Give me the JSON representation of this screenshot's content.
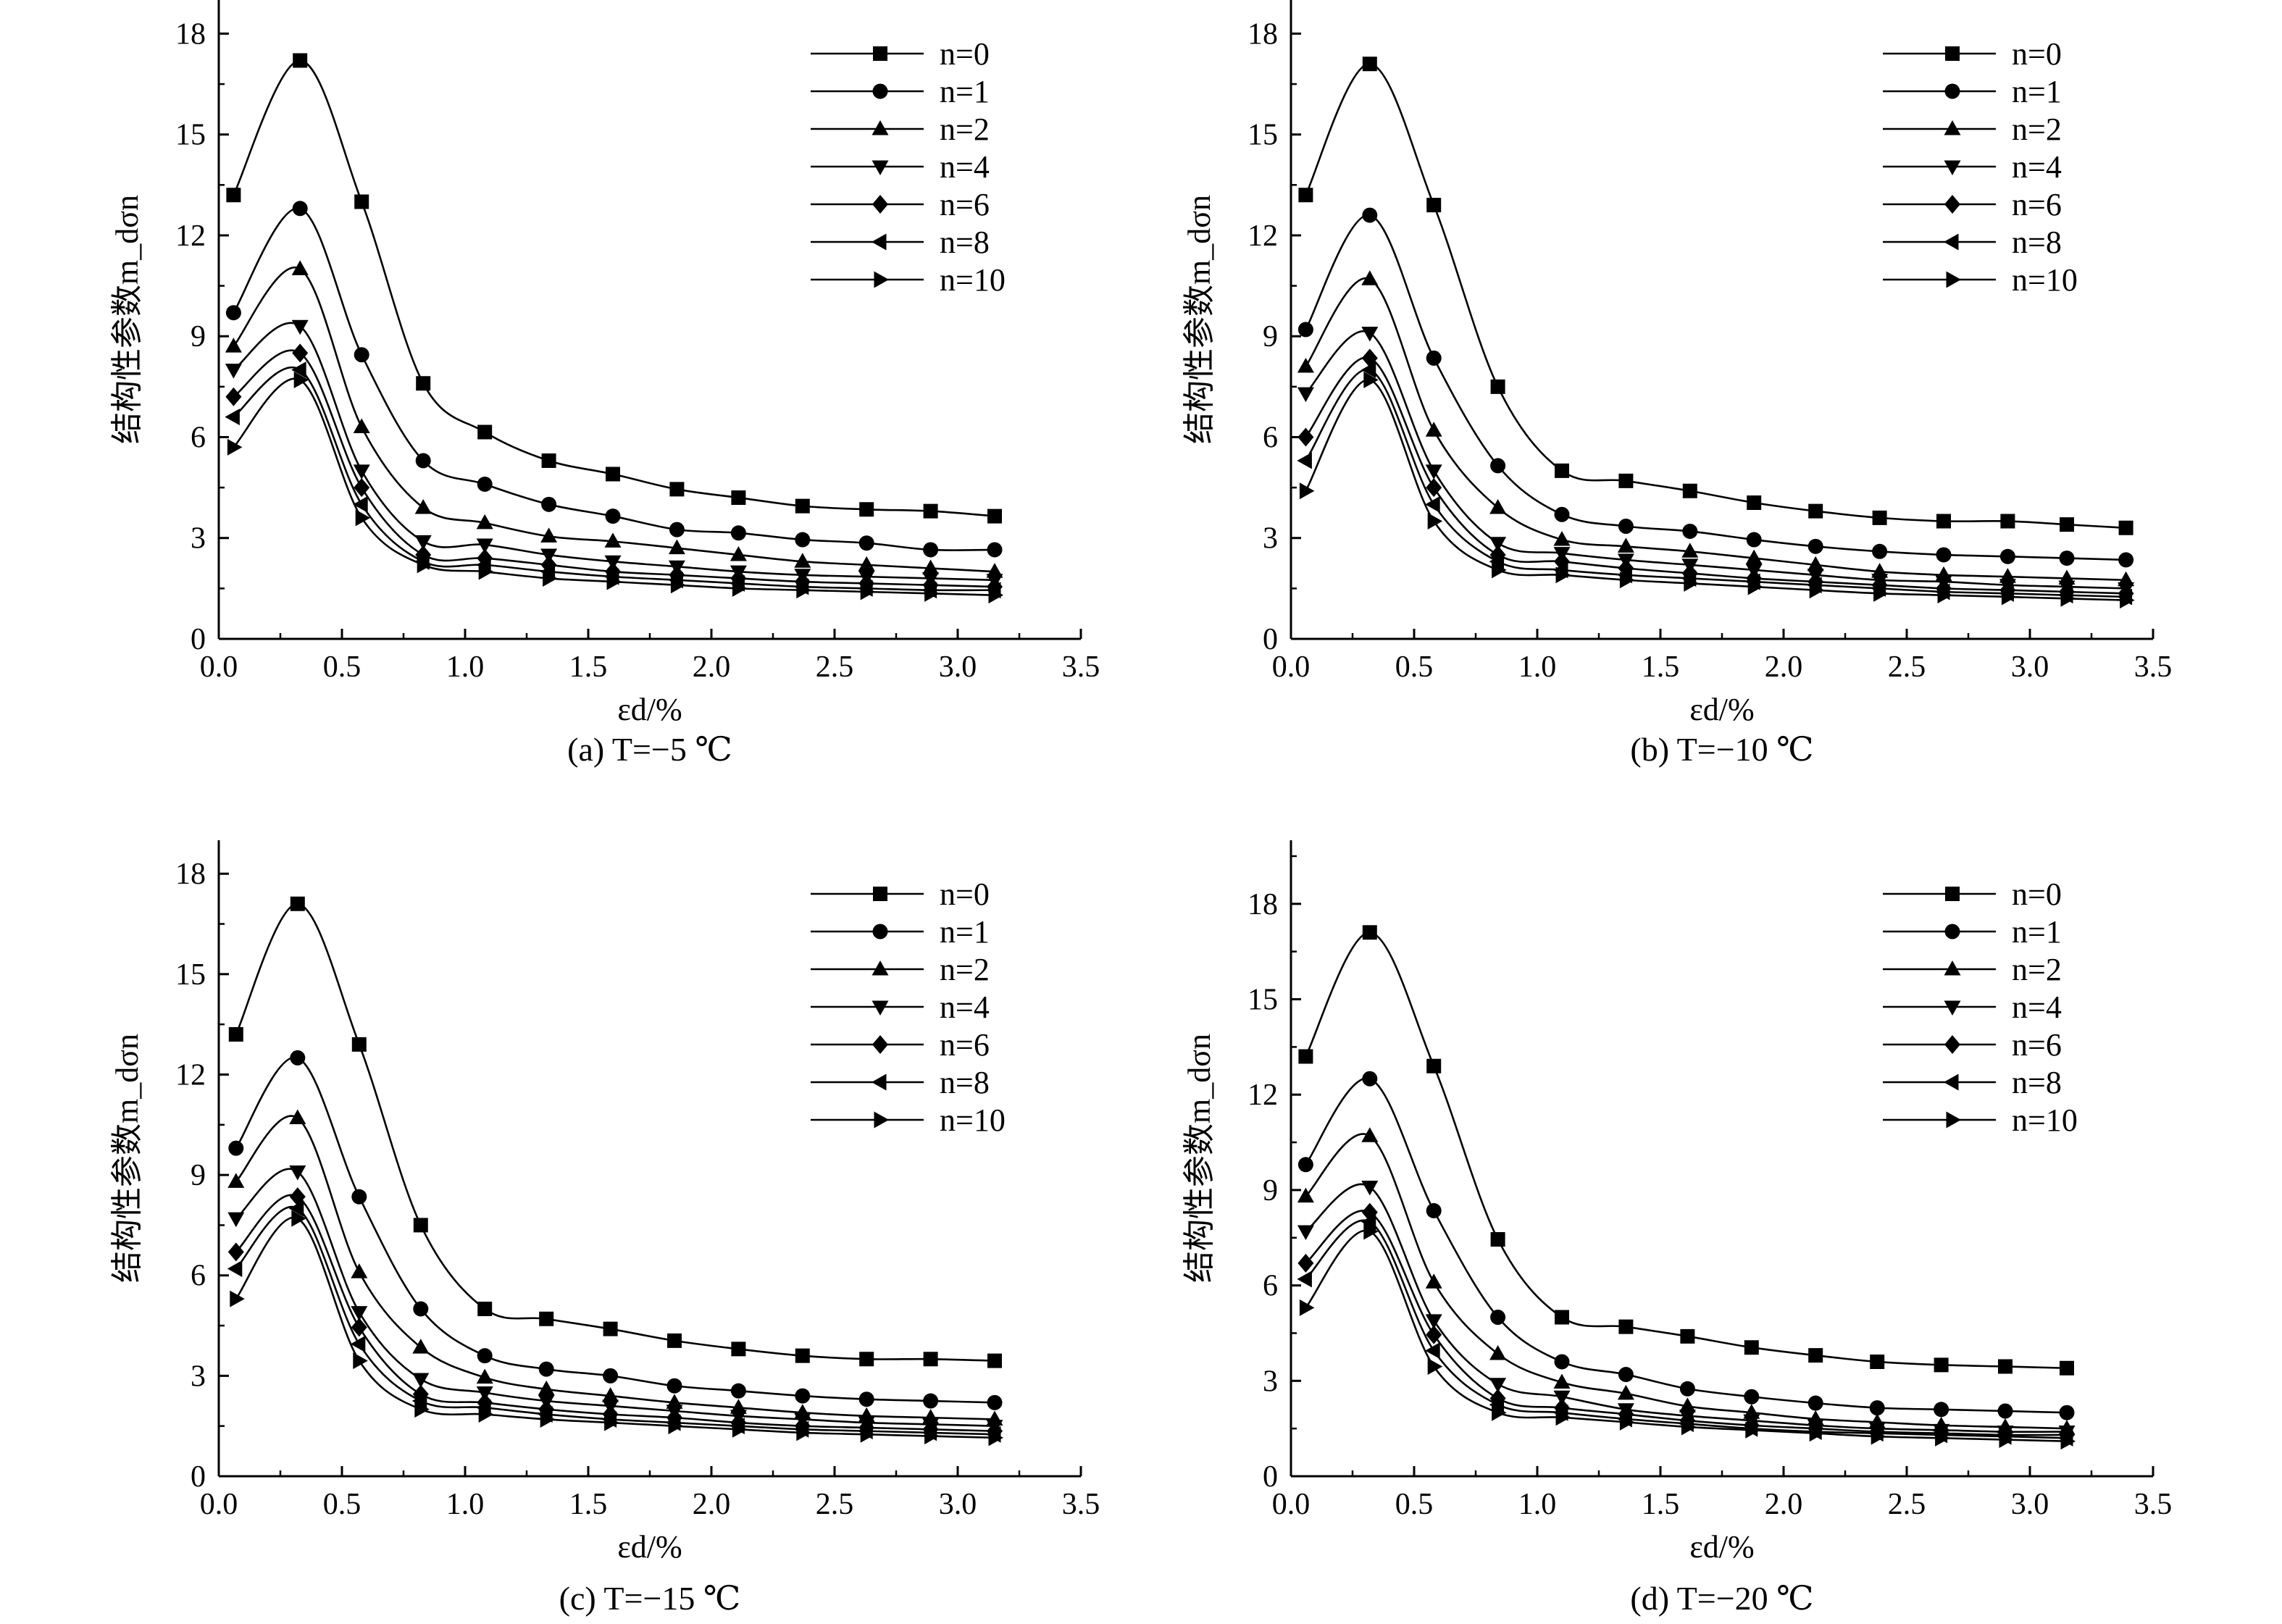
{
  "chart_data": [
    {
      "type": "line",
      "caption": "(a) T=−5 ℃",
      "xlabel": "εd/%",
      "ylabel": "结构性参数m_dσn",
      "xlim": [
        0,
        3.5
      ],
      "ylim": [
        0,
        19
      ],
      "xticks": [
        "0.0",
        "0.5",
        "1.0",
        "1.5",
        "2.0",
        "2.5",
        "3.0",
        "3.5"
      ],
      "yticks": [
        "0",
        "3",
        "6",
        "9",
        "12",
        "15",
        "18"
      ],
      "legend_position": "top-right",
      "x": [
        0.06,
        0.33,
        0.58,
        0.83,
        1.08,
        1.34,
        1.6,
        1.86,
        2.11,
        2.37,
        2.63,
        2.89,
        3.15
      ],
      "series": [
        {
          "name": "n=0",
          "marker": "square",
          "values": [
            13.2,
            17.2,
            13.0,
            7.6,
            6.15,
            5.3,
            4.9,
            4.45,
            4.2,
            3.95,
            3.85,
            3.8,
            3.65
          ]
        },
        {
          "name": "n=1",
          "marker": "circle",
          "values": [
            9.7,
            12.8,
            8.45,
            5.3,
            4.6,
            4.0,
            3.65,
            3.25,
            3.15,
            2.95,
            2.85,
            2.65,
            2.65
          ]
        },
        {
          "name": "n=2",
          "marker": "triangle-up",
          "values": [
            8.7,
            11.0,
            6.3,
            3.9,
            3.45,
            3.05,
            2.9,
            2.7,
            2.5,
            2.3,
            2.2,
            2.1,
            2.0
          ]
        },
        {
          "name": "n=4",
          "marker": "triangle-down",
          "values": [
            8.0,
            9.3,
            5.0,
            2.9,
            2.8,
            2.5,
            2.3,
            2.15,
            2.0,
            1.9,
            1.85,
            1.8,
            1.75
          ]
        },
        {
          "name": "n=6",
          "marker": "diamond",
          "values": [
            7.2,
            8.5,
            4.5,
            2.5,
            2.4,
            2.2,
            2.0,
            1.9,
            1.8,
            1.7,
            1.65,
            1.6,
            1.55
          ]
        },
        {
          "name": "n=8",
          "marker": "triangle-left",
          "values": [
            6.6,
            8.0,
            4.0,
            2.3,
            2.2,
            2.0,
            1.85,
            1.75,
            1.65,
            1.55,
            1.5,
            1.45,
            1.45
          ]
        },
        {
          "name": "n=10",
          "marker": "triangle-right",
          "values": [
            5.7,
            7.7,
            3.6,
            2.2,
            2.0,
            1.8,
            1.7,
            1.6,
            1.5,
            1.45,
            1.4,
            1.35,
            1.3
          ]
        }
      ]
    },
    {
      "type": "line",
      "caption": "(b) T=−10 ℃",
      "xlabel": "εd/%",
      "ylabel": "结构性参数m_dσn",
      "xlim": [
        0,
        3.5
      ],
      "ylim": [
        0,
        19
      ],
      "xticks": [
        "0.0",
        "0.5",
        "1.0",
        "1.5",
        "2.0",
        "2.5",
        "3.0",
        "3.5"
      ],
      "yticks": [
        "0",
        "3",
        "6",
        "9",
        "12",
        "15",
        "18"
      ],
      "legend_position": "top-right",
      "x": [
        0.06,
        0.32,
        0.58,
        0.84,
        1.1,
        1.36,
        1.62,
        1.88,
        2.13,
        2.39,
        2.65,
        2.91,
        3.15,
        3.39
      ],
      "series": [
        {
          "name": "n=0",
          "marker": "square",
          "values": [
            13.2,
            17.1,
            12.9,
            7.5,
            5.0,
            4.7,
            4.4,
            4.05,
            3.8,
            3.6,
            3.5,
            3.5,
            3.4,
            3.3
          ]
        },
        {
          "name": "n=1",
          "marker": "circle",
          "values": [
            9.2,
            12.6,
            8.35,
            5.15,
            3.7,
            3.35,
            3.2,
            2.95,
            2.75,
            2.6,
            2.5,
            2.45,
            2.4,
            2.35
          ]
        },
        {
          "name": "n=2",
          "marker": "triangle-up",
          "values": [
            8.1,
            10.7,
            6.2,
            3.9,
            2.95,
            2.75,
            2.6,
            2.4,
            2.2,
            2.0,
            1.9,
            1.85,
            1.8,
            1.75
          ]
        },
        {
          "name": "n=4",
          "marker": "triangle-down",
          "values": [
            7.3,
            9.1,
            5.0,
            2.85,
            2.55,
            2.35,
            2.2,
            2.05,
            1.9,
            1.75,
            1.7,
            1.6,
            1.55,
            1.5
          ]
        },
        {
          "name": "n=6",
          "marker": "diamond",
          "values": [
            6.0,
            8.35,
            4.5,
            2.5,
            2.3,
            2.1,
            1.95,
            1.8,
            1.7,
            1.6,
            1.5,
            1.45,
            1.4,
            1.35
          ]
        },
        {
          "name": "n=8",
          "marker": "triangle-left",
          "values": [
            5.3,
            8.0,
            4.0,
            2.3,
            2.05,
            1.9,
            1.8,
            1.7,
            1.6,
            1.5,
            1.4,
            1.35,
            1.3,
            1.25
          ]
        },
        {
          "name": "n=10",
          "marker": "triangle-right",
          "values": [
            4.4,
            7.7,
            3.5,
            2.05,
            1.9,
            1.75,
            1.65,
            1.55,
            1.45,
            1.35,
            1.3,
            1.25,
            1.2,
            1.15
          ]
        }
      ]
    },
    {
      "type": "line",
      "caption": "(c) T=−15 ℃",
      "xlabel": "εd/%",
      "ylabel": "结构性参数m_dσn",
      "xlim": [
        0,
        3.5
      ],
      "ylim": [
        0,
        19
      ],
      "xticks": [
        "0.0",
        "0.5",
        "1.0",
        "1.5",
        "2.0",
        "2.5",
        "3.0",
        "3.5"
      ],
      "yticks": [
        "0",
        "3",
        "6",
        "9",
        "12",
        "15",
        "18"
      ],
      "legend_position": "top-right",
      "x": [
        0.07,
        0.32,
        0.57,
        0.82,
        1.08,
        1.33,
        1.59,
        1.85,
        2.11,
        2.37,
        2.63,
        2.89,
        3.15
      ],
      "series": [
        {
          "name": "n=0",
          "marker": "square",
          "values": [
            13.2,
            17.1,
            12.9,
            7.5,
            5.0,
            4.7,
            4.4,
            4.05,
            3.8,
            3.6,
            3.5,
            3.5,
            3.45
          ]
        },
        {
          "name": "n=1",
          "marker": "circle",
          "values": [
            9.8,
            12.5,
            8.35,
            5.0,
            3.6,
            3.2,
            3.0,
            2.7,
            2.55,
            2.4,
            2.3,
            2.25,
            2.2
          ]
        },
        {
          "name": "n=2",
          "marker": "triangle-up",
          "values": [
            8.8,
            10.7,
            6.1,
            3.85,
            2.95,
            2.6,
            2.4,
            2.2,
            2.05,
            1.9,
            1.8,
            1.75,
            1.7
          ]
        },
        {
          "name": "n=4",
          "marker": "triangle-down",
          "values": [
            7.7,
            9.1,
            4.9,
            2.9,
            2.5,
            2.25,
            2.1,
            1.95,
            1.8,
            1.7,
            1.6,
            1.55,
            1.5
          ]
        },
        {
          "name": "n=6",
          "marker": "diamond",
          "values": [
            6.7,
            8.35,
            4.45,
            2.45,
            2.2,
            2.0,
            1.85,
            1.75,
            1.6,
            1.5,
            1.45,
            1.4,
            1.35
          ]
        },
        {
          "name": "n=8",
          "marker": "triangle-left",
          "values": [
            6.2,
            8.0,
            3.95,
            2.25,
            2.05,
            1.85,
            1.7,
            1.6,
            1.5,
            1.4,
            1.35,
            1.3,
            1.25
          ]
        },
        {
          "name": "n=10",
          "marker": "triangle-right",
          "values": [
            5.3,
            7.7,
            3.45,
            2.0,
            1.85,
            1.7,
            1.6,
            1.5,
            1.4,
            1.3,
            1.25,
            1.2,
            1.15
          ]
        }
      ]
    },
    {
      "type": "line",
      "caption": "(d) T=−20 ℃",
      "xlabel": "εd/%",
      "ylabel": "结构性参数m_dσn",
      "xlim": [
        0,
        3.5
      ],
      "ylim": [
        0,
        20
      ],
      "xticks": [
        "0.0",
        "0.5",
        "1.0",
        "1.5",
        "2.0",
        "2.5",
        "3.0",
        "3.5"
      ],
      "yticks": [
        "0",
        "3",
        "6",
        "9",
        "12",
        "15",
        "18"
      ],
      "legend_position": "top-right",
      "x": [
        0.06,
        0.32,
        0.58,
        0.84,
        1.1,
        1.36,
        1.61,
        1.87,
        2.13,
        2.38,
        2.64,
        2.9,
        3.15
      ],
      "series": [
        {
          "name": "n=0",
          "marker": "square",
          "values": [
            13.2,
            17.1,
            12.9,
            7.45,
            5.0,
            4.7,
            4.4,
            4.05,
            3.8,
            3.6,
            3.5,
            3.45,
            3.4
          ]
        },
        {
          "name": "n=1",
          "marker": "circle",
          "values": [
            9.8,
            12.5,
            8.35,
            5.0,
            3.6,
            3.2,
            2.75,
            2.5,
            2.3,
            2.15,
            2.1,
            2.05,
            2.0
          ]
        },
        {
          "name": "n=2",
          "marker": "triangle-up",
          "values": [
            8.8,
            10.7,
            6.1,
            3.85,
            2.95,
            2.6,
            2.2,
            2.0,
            1.8,
            1.7,
            1.6,
            1.55,
            1.5
          ]
        },
        {
          "name": "n=4",
          "marker": "triangle-down",
          "values": [
            7.7,
            9.1,
            4.9,
            2.9,
            2.5,
            2.1,
            1.9,
            1.75,
            1.6,
            1.5,
            1.45,
            1.4,
            1.4
          ]
        },
        {
          "name": "n=6",
          "marker": "diamond",
          "values": [
            6.7,
            8.3,
            4.45,
            2.45,
            2.15,
            1.95,
            1.75,
            1.6,
            1.5,
            1.4,
            1.35,
            1.3,
            1.3
          ]
        },
        {
          "name": "n=8",
          "marker": "triangle-left",
          "values": [
            6.2,
            8.0,
            3.95,
            2.25,
            2.0,
            1.8,
            1.65,
            1.5,
            1.4,
            1.35,
            1.3,
            1.25,
            1.2
          ]
        },
        {
          "name": "n=10",
          "marker": "triangle-right",
          "values": [
            5.3,
            7.7,
            3.45,
            2.0,
            1.85,
            1.7,
            1.55,
            1.45,
            1.35,
            1.25,
            1.2,
            1.15,
            1.1
          ]
        }
      ]
    }
  ]
}
